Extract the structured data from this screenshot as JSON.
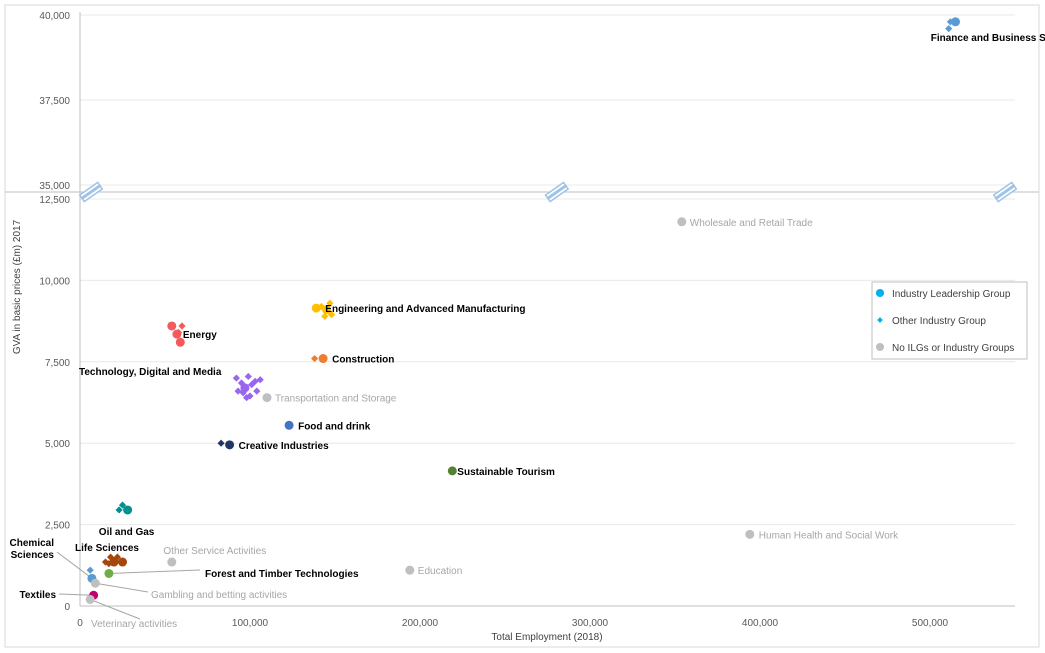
{
  "chart_data": {
    "type": "scatter",
    "xlabel": "Total Employment (2018)",
    "ylabel": "GVA in basic prices (£m) 2017",
    "xlim": [
      0,
      550000
    ],
    "ylim_lower": [
      0,
      12500
    ],
    "ylim_upper": [
      35000,
      40000
    ],
    "axis_break": true,
    "x_ticks": [
      "0",
      "100,000",
      "200,000",
      "300,000",
      "400,000",
      "500,000"
    ],
    "x_tick_values": [
      0,
      100000,
      200000,
      300000,
      400000,
      500000
    ],
    "y_ticks_lower": [
      "0",
      "2,500",
      "5,000",
      "7,500",
      "10,000",
      "12,500"
    ],
    "y_tick_values_lower": [
      0,
      2500,
      5000,
      7500,
      10000,
      12500
    ],
    "y_ticks_upper": [
      "35,000",
      "37,500",
      "40,000"
    ],
    "y_tick_values_upper": [
      35000,
      37500,
      40000
    ],
    "grid": true,
    "legend_position": "right",
    "legend": [
      {
        "label": "Industry Leadership Group",
        "marker": "circle",
        "color": "#00b0f0"
      },
      {
        "label": "Other Industry Group",
        "marker": "diamond",
        "color": "#00b0f0"
      },
      {
        "label": "No ILGs or Industry Groups",
        "marker": "circle",
        "color": "#bfbfbf"
      }
    ],
    "sectors": [
      {
        "label": "Finance and Business Services",
        "style": "bold",
        "color": "#5b9bd5",
        "points": [
          [
            515000,
            39800,
            "circle"
          ],
          [
            512000,
            39800,
            "diamond"
          ],
          [
            511000,
            39600,
            "diamond"
          ]
        ]
      },
      {
        "label": "Wholesale and Retail Trade",
        "style": "grey",
        "color": "#bfbfbf",
        "points": [
          [
            354000,
            11800,
            "circle"
          ]
        ]
      },
      {
        "label": "Engineering and Advanced Manufacturing",
        "style": "bold",
        "color": "#ffc000",
        "points": [
          [
            139000,
            9150,
            "circle"
          ],
          [
            145000,
            9100,
            "circle"
          ],
          [
            147000,
            9300,
            "diamond"
          ],
          [
            148000,
            8950,
            "diamond"
          ],
          [
            142000,
            9200,
            "diamond"
          ],
          [
            144000,
            8900,
            "diamond"
          ]
        ]
      },
      {
        "label": "Energy",
        "style": "bold",
        "color": "#f4595c",
        "points": [
          [
            54000,
            8600,
            "circle"
          ],
          [
            57000,
            8350,
            "circle"
          ],
          [
            59000,
            8100,
            "circle"
          ],
          [
            60000,
            8600,
            "diamond"
          ],
          [
            58000,
            8400,
            "diamond"
          ]
        ]
      },
      {
        "label": "Construction",
        "style": "bold",
        "color": "#ed7d31",
        "points": [
          [
            143000,
            7600,
            "circle"
          ],
          [
            138000,
            7600,
            "diamond"
          ]
        ]
      },
      {
        "label": "Technology, Digital and Media",
        "style": "bold",
        "color": "#9966ee",
        "points": [
          [
            97000,
            6700,
            "circle"
          ],
          [
            92000,
            7000,
            "diamond"
          ],
          [
            95000,
            6850,
            "diamond"
          ],
          [
            99000,
            7050,
            "diamond"
          ],
          [
            101000,
            6800,
            "diamond"
          ],
          [
            103000,
            6900,
            "diamond"
          ],
          [
            93000,
            6600,
            "diamond"
          ],
          [
            96000,
            6550,
            "diamond"
          ],
          [
            100000,
            6450,
            "diamond"
          ],
          [
            104000,
            6600,
            "diamond"
          ],
          [
            98000,
            6400,
            "diamond"
          ],
          [
            106000,
            6950,
            "diamond"
          ]
        ]
      },
      {
        "label": "Transportation and Storage",
        "style": "grey",
        "color": "#bfbfbf",
        "points": [
          [
            110000,
            6400,
            "circle"
          ]
        ]
      },
      {
        "label": "Food and drink",
        "style": "bold",
        "color": "#4472c4",
        "points": [
          [
            123000,
            5550,
            "circle"
          ]
        ]
      },
      {
        "label": "Creative Industries",
        "style": "bold",
        "color": "#203864",
        "points": [
          [
            88000,
            4950,
            "circle"
          ],
          [
            83000,
            5000,
            "diamond"
          ]
        ]
      },
      {
        "label": "Sustainable Tourism",
        "style": "bold",
        "color": "#548235",
        "points": [
          [
            219000,
            4150,
            "circle"
          ]
        ]
      },
      {
        "label": "Oil and Gas",
        "style": "bold",
        "color": "#00908f",
        "points": [
          [
            28000,
            2950,
            "circle"
          ],
          [
            23000,
            2950,
            "diamond"
          ],
          [
            25000,
            3100,
            "diamond"
          ]
        ]
      },
      {
        "label": "Human Health and Social Work",
        "style": "grey",
        "color": "#bfbfbf",
        "points": [
          [
            394000,
            2200,
            "circle"
          ]
        ]
      },
      {
        "label": "Other Service Activities",
        "style": "grey",
        "color": "#bfbfbf",
        "points": [
          [
            54000,
            1350,
            "circle"
          ]
        ]
      },
      {
        "label": "Life Sciences",
        "style": "bold",
        "color": "#a5470b",
        "points": [
          [
            20000,
            1350,
            "circle"
          ],
          [
            25000,
            1350,
            "circle"
          ],
          [
            15000,
            1350,
            "diamond"
          ],
          [
            18000,
            1500,
            "diamond"
          ],
          [
            22000,
            1500,
            "diamond"
          ],
          [
            17000,
            1300,
            "diamond"
          ]
        ]
      },
      {
        "label": "Forest and Timber Technologies",
        "style": "bold",
        "color": "#70ad47",
        "points": [
          [
            17000,
            1000,
            "circle"
          ]
        ]
      },
      {
        "label": "Education",
        "style": "grey",
        "color": "#bfbfbf",
        "points": [
          [
            194000,
            1100,
            "circle"
          ]
        ]
      },
      {
        "label": "Chemical Sciences",
        "style": "bold",
        "color": "#5b9bd5",
        "points": [
          [
            7000,
            850,
            "circle"
          ],
          [
            6000,
            1100,
            "diamond"
          ]
        ]
      },
      {
        "label": "Gambling and betting activities",
        "style": "grey",
        "color": "#bfbfbf",
        "points": [
          [
            9000,
            700,
            "circle"
          ]
        ]
      },
      {
        "label": "Textiles",
        "style": "bold",
        "color": "#c00070",
        "points": [
          [
            8000,
            330,
            "circle"
          ]
        ]
      },
      {
        "label": "Veterinary activities",
        "style": "grey",
        "color": "#bfbfbf",
        "points": [
          [
            6000,
            200,
            "circle"
          ]
        ]
      }
    ]
  }
}
